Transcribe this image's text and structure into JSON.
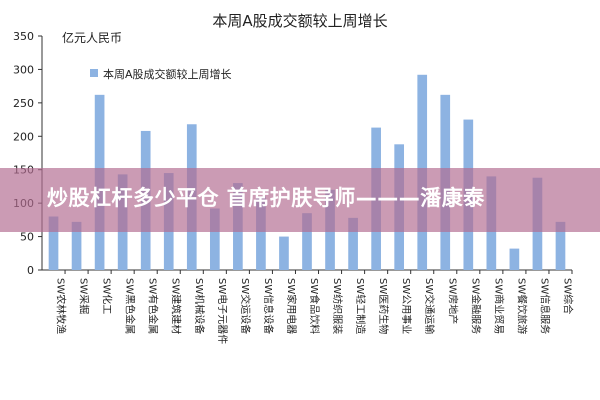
{
  "chart_data": {
    "type": "bar",
    "title": "本周A股成交额较上周增长",
    "unit_label": "亿元人民币",
    "legend": "本周A股成交额较上周增长",
    "legend_position": "top-left",
    "grid": false,
    "ylim": [
      0,
      350
    ],
    "yticks": [
      0,
      50,
      100,
      150,
      200,
      250,
      300,
      350
    ],
    "bar_color": "#8db3e2",
    "categories": [
      "SW农林牧渔",
      "SW采掘",
      "SW化工",
      "SW黑色金属",
      "SW有色金属",
      "SW建筑建材",
      "SW机械设备",
      "SW电子元器件",
      "SW交运设备",
      "SW信息设备",
      "SW家用电器",
      "SW食品饮料",
      "SW纺织服装",
      "SW轻工制造",
      "SW医药生物",
      "SW公用事业",
      "SW交通运输",
      "SW房地产",
      "SW金融服务",
      "SW商业贸易",
      "SW餐饮旅游",
      "SW信息服务",
      "SW综合"
    ],
    "values": [
      80,
      72,
      262,
      143,
      208,
      145,
      218,
      92,
      130,
      110,
      50,
      85,
      120,
      78,
      213,
      188,
      292,
      262,
      225,
      140,
      32,
      138,
      72
    ]
  },
  "overlay": {
    "text": "炒股杠杆多少平仓 首席护肤导师———潘康泰",
    "color": "#b26c91"
  }
}
